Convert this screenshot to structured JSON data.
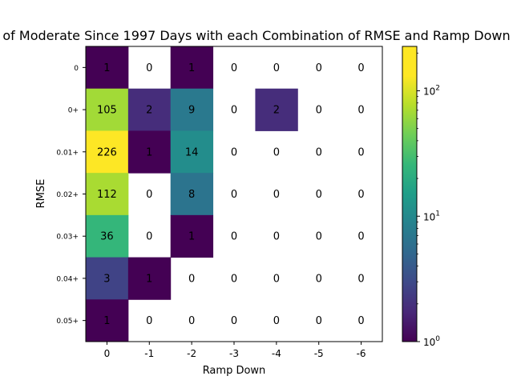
{
  "chart_data": {
    "type": "heatmap",
    "title": "of Moderate Since 1997 Days with each Combination of RMSE and Ramp Down",
    "xlabel": "Ramp Down",
    "ylabel": "RMSE",
    "x_categories": [
      "0",
      "-1",
      "-2",
      "-3",
      "-4",
      "-5",
      "-6"
    ],
    "y_categories": [
      "0",
      "0+",
      "0.01+",
      "0.02+",
      "0.03+",
      "0.04+",
      "0.05+"
    ],
    "values": [
      [
        1,
        0,
        1,
        0,
        0,
        0,
        0
      ],
      [
        105,
        2,
        9,
        0,
        2,
        0,
        0
      ],
      [
        226,
        1,
        14,
        0,
        0,
        0,
        0
      ],
      [
        112,
        0,
        8,
        0,
        0,
        0,
        0
      ],
      [
        36,
        0,
        1,
        0,
        0,
        0,
        0
      ],
      [
        3,
        1,
        0,
        0,
        0,
        0,
        0
      ],
      [
        1,
        0,
        0,
        0,
        0,
        0,
        0
      ]
    ],
    "colormap": "viridis",
    "color_scale": "log",
    "color_range": [
      1,
      226
    ],
    "zero_cells": "blank",
    "colorbar": {
      "ticks": [
        1,
        10,
        100
      ],
      "tick_labels": [
        "10^0",
        "10^1",
        "10^2"
      ]
    }
  }
}
